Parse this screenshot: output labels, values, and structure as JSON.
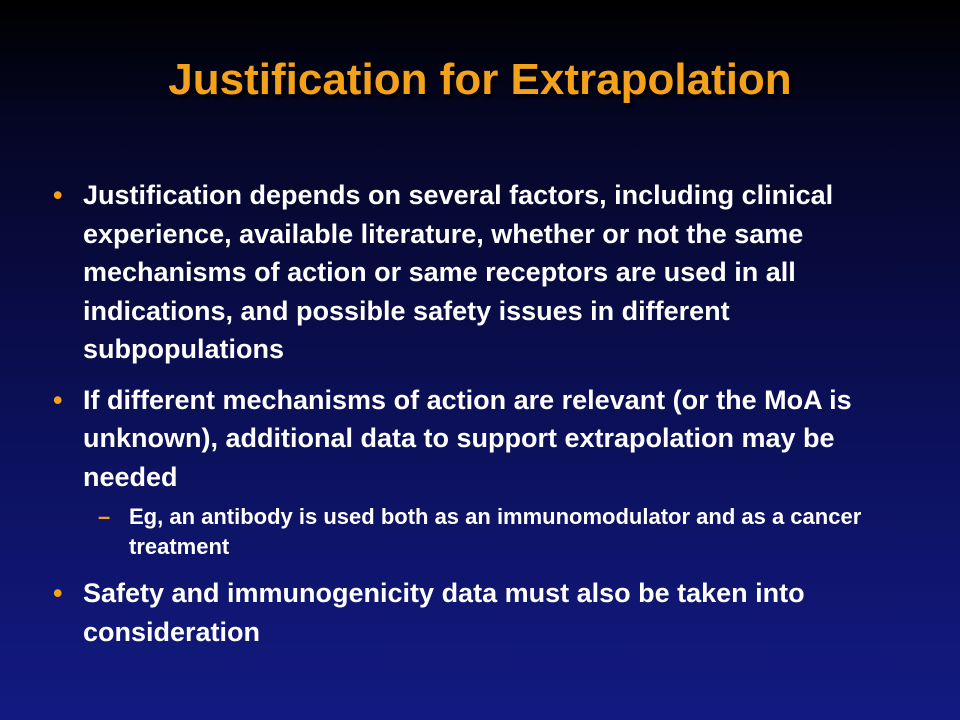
{
  "slide": {
    "title": "Justification for Extrapolation",
    "bullets": [
      {
        "marker": "•",
        "text": "Justification depends on several factors, including clinical experience, available literature, whether or not the same mechanisms of action or same receptors are used in all indications, and possible safety issues in different subpopulations"
      },
      {
        "marker": "•",
        "text": "If different mechanisms of action are relevant (or the MoA is unknown), additional data to support extrapolation may be needed",
        "subbullets": [
          {
            "marker": "–",
            "text": "Eg, an antibody is used both as an immunomodulator and as a cancer treatment"
          }
        ]
      },
      {
        "marker": "•",
        "text": "Safety and immunogenicity data must also be taken into consideration"
      }
    ]
  },
  "colors": {
    "title": "#f5a21b",
    "bullet_marker": "#f5a21b",
    "body_text": "#ffffff",
    "background_top": "#000000",
    "background_bottom": "#121a82"
  }
}
